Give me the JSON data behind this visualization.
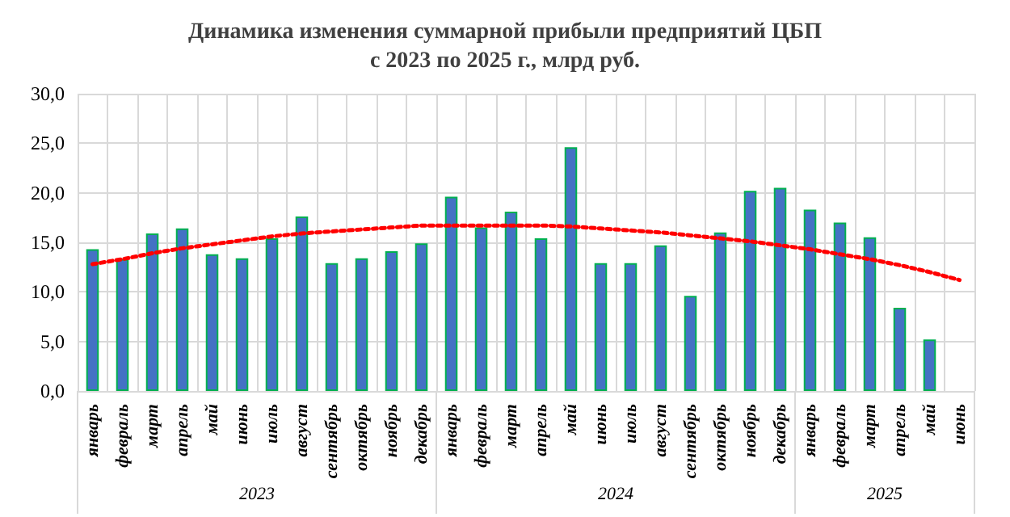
{
  "chart_data": {
    "type": "bar",
    "title": "Динамика изменения суммарной прибыли предприятий ЦБП\nс 2023 по 2025 г., млрд руб.",
    "categories": [
      "январь",
      "февраль",
      "март",
      "апрель",
      "май",
      "июнь",
      "июль",
      "август",
      "сентябрь",
      "октябрь",
      "ноябрь",
      "декабрь",
      "январь",
      "февраль",
      "март",
      "апрель",
      "май",
      "июнь",
      "июль",
      "август",
      "сентябрь",
      "октябрь",
      "ноябрь",
      "декабрь",
      "январь",
      "февраль",
      "март",
      "апрель",
      "май",
      "июнь"
    ],
    "annotations": [
      "2023",
      "2024",
      "2025"
    ],
    "series": [
      {
        "color": "#4472c4",
        "values": [
          14.3,
          13.3,
          15.9,
          16.4,
          13.8,
          13.4,
          15.4,
          17.6,
          12.9,
          13.4,
          14.1,
          14.9,
          19.6,
          16.5,
          18.1,
          15.4,
          24.6,
          12.9,
          12.9,
          14.7,
          9.6,
          16.0,
          20.2,
          20.5,
          18.3,
          17.0,
          15.5,
          8.4,
          5.2,
          null
        ]
      },
      {
        "type": "line",
        "color": "#ff0000",
        "line_style": "dotted",
        "marker": "none",
        "values": [
          12.8,
          13.3,
          13.9,
          14.4,
          14.8,
          15.2,
          15.6,
          15.9,
          16.1,
          16.3,
          16.5,
          16.7,
          16.7,
          16.7,
          16.7,
          16.7,
          16.6,
          16.4,
          16.2,
          16.0,
          15.7,
          15.4,
          15.1,
          14.7,
          14.3,
          13.8,
          13.3,
          12.7,
          12.0,
          11.2
        ]
      }
    ],
    "ylim": [
      0,
      30
    ],
    "yticks": [
      {
        "value": 0,
        "label": "0,0"
      },
      {
        "value": 5,
        "label": "5,0"
      },
      {
        "value": 10,
        "label": "10,0"
      },
      {
        "value": 15,
        "label": "15,0"
      },
      {
        "value": 20,
        "label": "20,0"
      },
      {
        "value": 25,
        "label": "25,0"
      },
      {
        "value": 30,
        "label": "30,0"
      }
    ],
    "grid": true
  }
}
